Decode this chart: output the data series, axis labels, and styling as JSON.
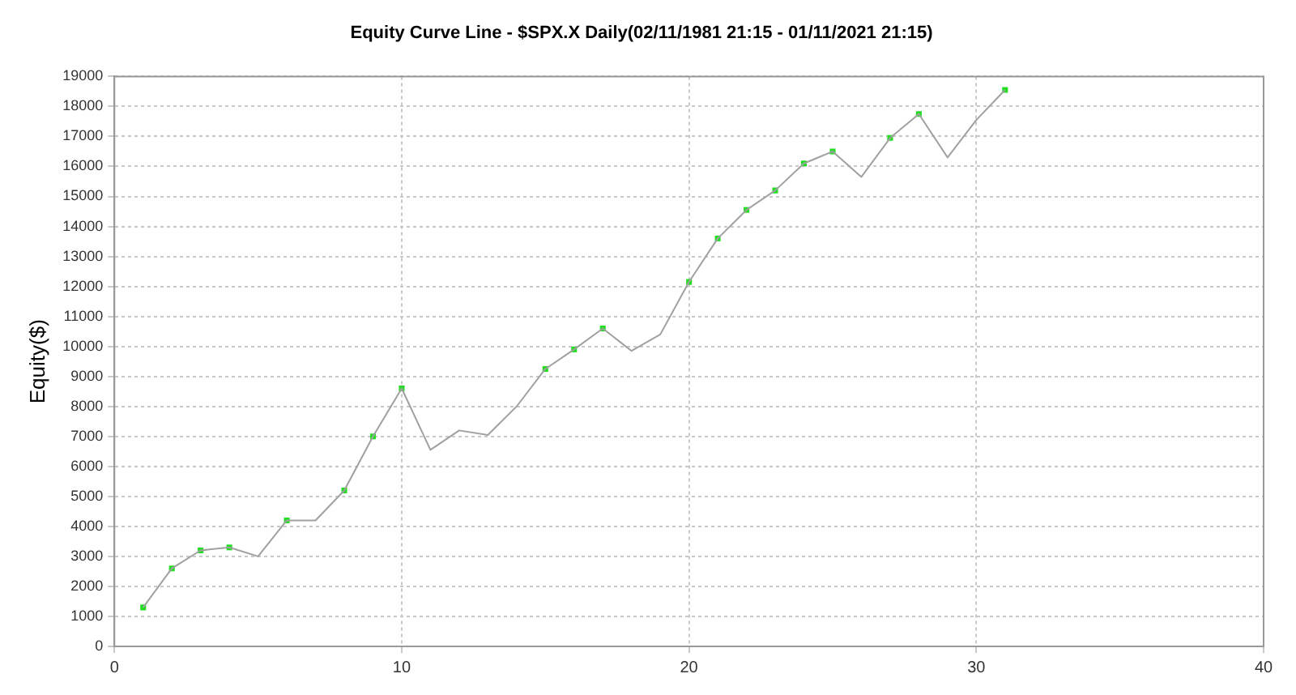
{
  "chart_data": {
    "type": "line",
    "title": "Equity Curve Line - $SPX.X Daily(02/11/1981 21:15 - 01/11/2021 21:15)",
    "ylabel": "Equity($)",
    "series": [
      {
        "color": "#a0a0a0",
        "marker": "none",
        "x": [
          1,
          2,
          3,
          4,
          5,
          6,
          7,
          8,
          9,
          10,
          11,
          12,
          13,
          14,
          15,
          16,
          17,
          18,
          19,
          20,
          21,
          22,
          23,
          24,
          25,
          26,
          27,
          28,
          29,
          30,
          31
        ],
        "values": [
          1300,
          2600,
          3200,
          3300,
          3000,
          4200,
          4200,
          5200,
          7000,
          8600,
          6550,
          7200,
          7050,
          8000,
          9250,
          9900,
          10600,
          9850,
          10400,
          12150,
          13600,
          14550,
          15200,
          16100,
          16500,
          15650,
          16950,
          17750,
          16300,
          17550,
          18550
        ]
      },
      {
        "type": "scatter",
        "color": "#22dd22",
        "marker": "square",
        "x": [
          1,
          2,
          3,
          4,
          6,
          8,
          9,
          10,
          15,
          16,
          17,
          20,
          21,
          22,
          23,
          24,
          25,
          27,
          28,
          31
        ],
        "values": [
          1300,
          2600,
          3200,
          3300,
          4200,
          5200,
          7000,
          8600,
          9250,
          9900,
          10600,
          12150,
          13600,
          14550,
          15200,
          16100,
          16500,
          16950,
          17750,
          18550
        ]
      }
    ],
    "xlim": [
      0,
      40
    ],
    "xticks": [
      0,
      10,
      20,
      30,
      40
    ],
    "ylim": [
      0,
      19000
    ],
    "yticks": [
      0,
      1000,
      2000,
      3000,
      4000,
      5000,
      6000,
      7000,
      8000,
      9000,
      10000,
      11000,
      12000,
      13000,
      14000,
      15000,
      16000,
      17000,
      18000,
      19000
    ],
    "grid": true,
    "legend": false,
    "line_style": "solid"
  }
}
